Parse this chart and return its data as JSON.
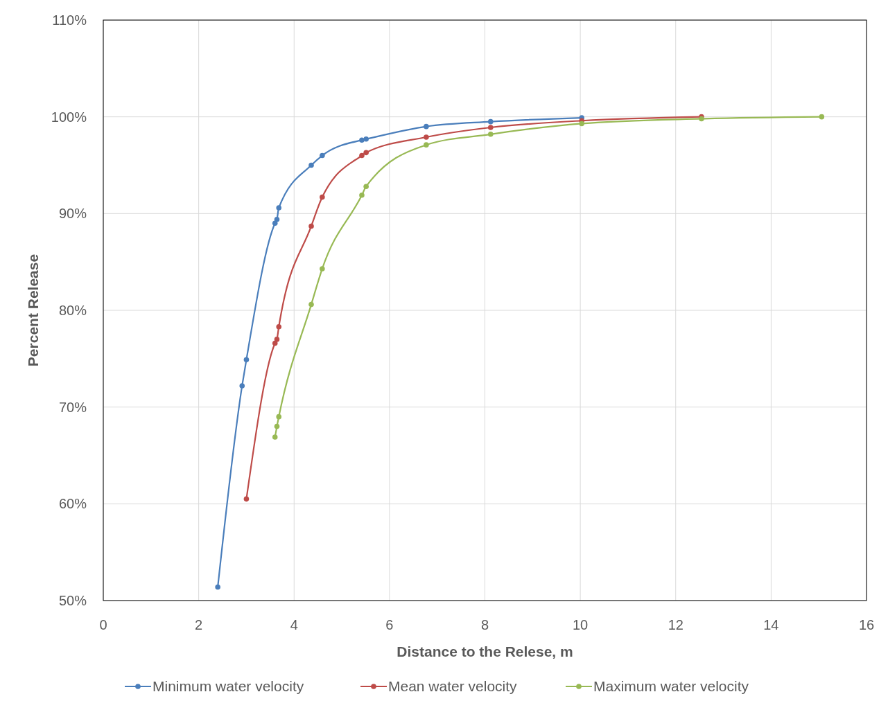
{
  "chart_data": {
    "type": "line",
    "xlabel": "Distance to the Relese, m",
    "ylabel": "Percent Release",
    "xlim": [
      0,
      16
    ],
    "xticks": [
      0,
      2,
      4,
      6,
      8,
      10,
      12,
      14,
      16
    ],
    "ylim": [
      50,
      110
    ],
    "yticks": [
      {
        "value": 50,
        "label": "50%"
      },
      {
        "value": 60,
        "label": "60%"
      },
      {
        "value": 70,
        "label": "70%"
      },
      {
        "value": 80,
        "label": "80%"
      },
      {
        "value": 90,
        "label": "90%"
      },
      {
        "value": 100,
        "label": "100%"
      },
      {
        "value": 110,
        "label": "110%"
      }
    ],
    "grid": true,
    "legend": "bottom",
    "marker": "circle",
    "line_style": "solid",
    "series": [
      {
        "name": "Minimum water velocity",
        "color": "#4a7ebb",
        "x": [
          2.4,
          2.91,
          3.0,
          3.6,
          3.64,
          3.68,
          4.36,
          4.59,
          5.42,
          5.51,
          6.77,
          8.12,
          10.03
        ],
        "values": [
          51.4,
          72.2,
          74.9,
          89.0,
          89.4,
          90.6,
          95.0,
          96.0,
          97.6,
          97.7,
          99.0,
          99.5,
          99.9
        ]
      },
      {
        "name": "Mean water velocity",
        "color": "#be4b48",
        "x": [
          3.0,
          3.6,
          3.64,
          3.68,
          4.36,
          4.59,
          5.42,
          5.51,
          6.77,
          8.12,
          10.03,
          12.54
        ],
        "values": [
          60.5,
          76.6,
          77.0,
          78.3,
          88.7,
          91.7,
          96.0,
          96.3,
          97.9,
          98.9,
          99.6,
          100
        ]
      },
      {
        "name": "Maximum water velocity",
        "color": "#98b954",
        "x": [
          3.6,
          3.64,
          3.68,
          4.36,
          4.59,
          5.42,
          5.51,
          6.77,
          8.12,
          10.03,
          12.54,
          15.06
        ],
        "values": [
          66.9,
          68.0,
          69.0,
          80.6,
          84.3,
          91.9,
          92.8,
          97.1,
          98.2,
          99.3,
          99.8,
          100
        ]
      }
    ]
  }
}
